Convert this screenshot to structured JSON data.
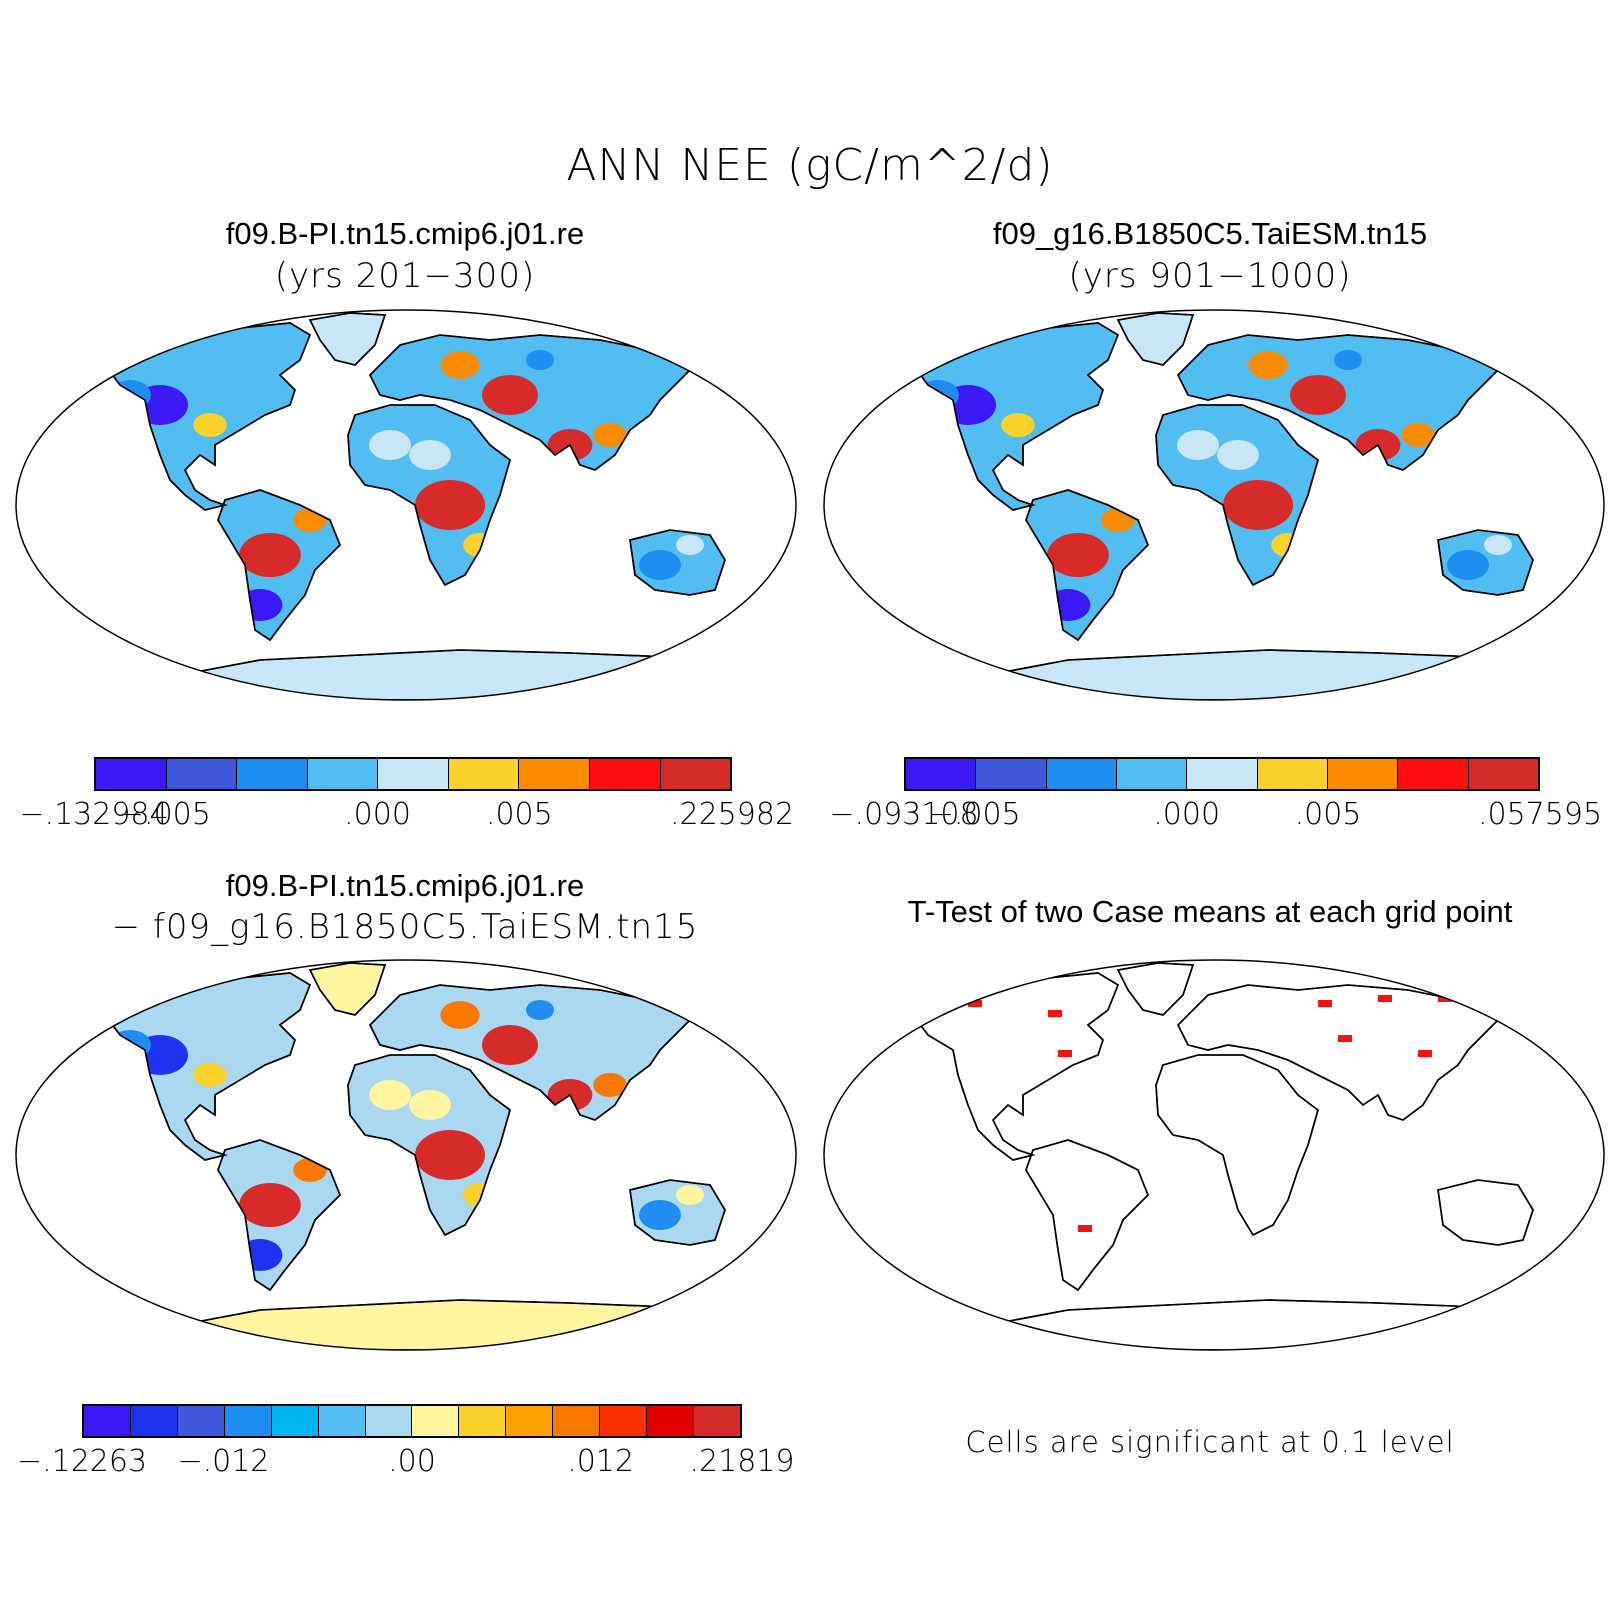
{
  "title": "ANN NEE (gC/m^2/d)",
  "panels": [
    {
      "id": "case1",
      "title": "f09.B-PI.tn15.cmip6.j01.re",
      "subtitle": "(yrs 201−300)",
      "colorbar": {
        "colors": [
          "#3b19f5",
          "#3d58dc",
          "#1f8cf0",
          "#52bdf0",
          "#c8e6f5",
          "#fbd22b",
          "#fb8c00",
          "#fb0f0f",
          "#d72a2a"
        ],
        "labels": [
          "−.132984",
          "−.005",
          ".000",
          ".005",
          ".225982"
        ]
      },
      "map_colors": {
        "ocean": "#ffffff",
        "ice": "#c8e6f5",
        "land_base": "#52bdf0",
        "neg_strong": "#3b19f5",
        "neg": "#1f8cf0",
        "near_zero": "#c8e6f5",
        "pos": "#fbd22b",
        "pos_mid": "#fb8c00",
        "pos_strong": "#d72a2a"
      }
    },
    {
      "id": "case2",
      "title": "f09_g16.B1850C5.TaiESM.tn15",
      "subtitle": "(yrs 901−1000)",
      "colorbar": {
        "colors": [
          "#3b19f5",
          "#3d58dc",
          "#1f8cf0",
          "#52bdf0",
          "#c8e6f5",
          "#fbd22b",
          "#fb8c00",
          "#fb0f0f",
          "#d72a2a"
        ],
        "labels": [
          "−.093108",
          "−.005",
          ".000",
          ".005",
          ".057595"
        ]
      },
      "map_colors": {
        "ocean": "#ffffff",
        "ice": "#c8e6f5",
        "land_base": "#52bdf0",
        "neg_strong": "#3b19f5",
        "neg": "#1f8cf0",
        "near_zero": "#c8e6f5",
        "pos": "#fbd22b",
        "pos_mid": "#fb8c00",
        "pos_strong": "#d72a2a"
      }
    },
    {
      "id": "diff",
      "title": "f09.B-PI.tn15.cmip6.j01.re",
      "subtitle": "− f09_g16.B1850C5.TaiESM.tn15",
      "colorbar": {
        "colors": [
          "#3b19f5",
          "#1e32f0",
          "#3d58dc",
          "#1f8cf0",
          "#00b4f0",
          "#52bdf0",
          "#aad8f0",
          "#fff5a0",
          "#fbd22b",
          "#fba000",
          "#fb7800",
          "#fb3200",
          "#e10000",
          "#d72a2a"
        ],
        "labels": [
          "−.12263",
          "−.012",
          ".00",
          ".012",
          ".21819"
        ]
      },
      "map_colors": {
        "ocean": "#ffffff",
        "ice": "#fff5a0",
        "land_base": "#aad8f0",
        "neg_strong": "#1e32f0",
        "neg": "#1f8cf0",
        "near_zero": "#fff5a0",
        "pos": "#fbd22b",
        "pos_mid": "#fb7800",
        "pos_strong": "#d72a2a"
      }
    },
    {
      "id": "ttest",
      "title": "T-Test of two Case means at each grid point",
      "note": "Cells are significant at 0.1 level",
      "map_colors": {
        "ocean": "#ffffff",
        "land_base": "#ffffff",
        "significant": "#fb0f0f"
      }
    }
  ]
}
